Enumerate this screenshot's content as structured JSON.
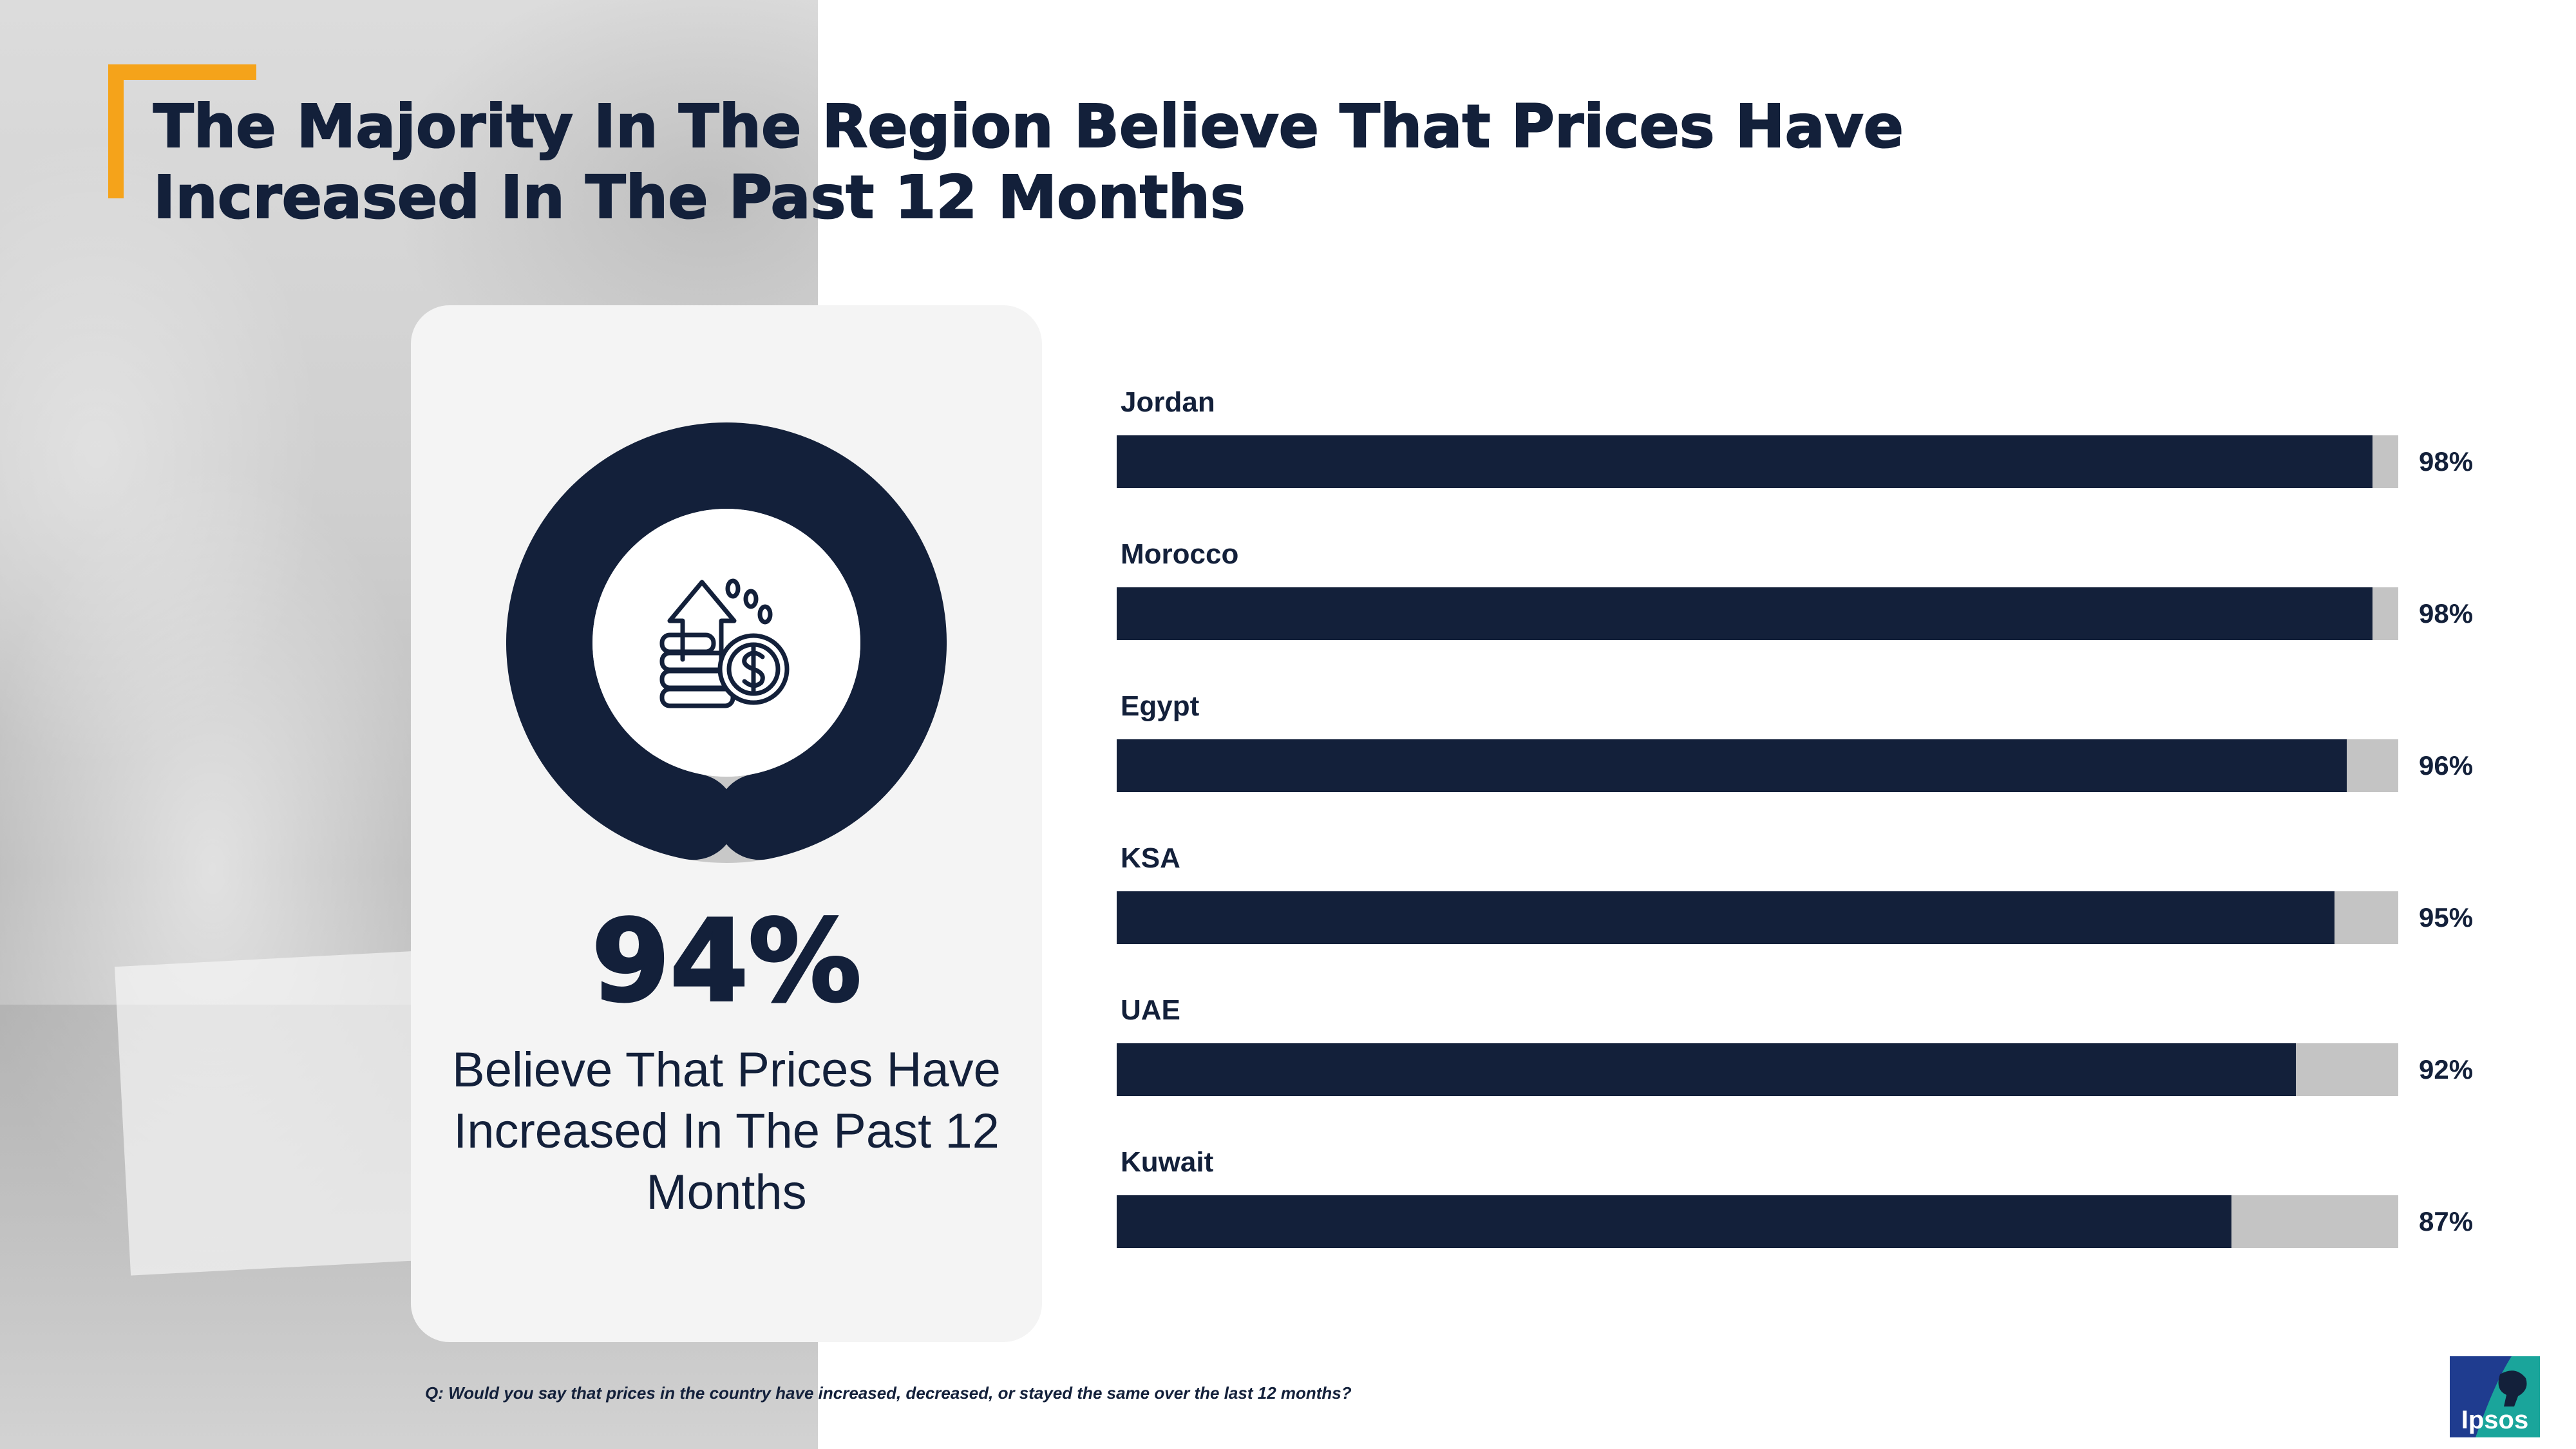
{
  "title": "The Majority In The Region Believe That Prices Have Increased In The Past 12 Months",
  "kpi": {
    "value": "94%",
    "fraction": 0.94,
    "caption": "Believe That Prices Have Increased In The Past 12 Months",
    "icon": "price-increase-icon"
  },
  "chart_data": {
    "type": "bar",
    "orientation": "horizontal",
    "categories": [
      "Jordan",
      "Morocco",
      "Egypt",
      "KSA",
      "UAE",
      "Kuwait"
    ],
    "values": [
      98,
      98,
      96,
      95,
      92,
      87
    ],
    "value_labels": [
      "98%",
      "98%",
      "96%",
      "95%",
      "92%",
      "87%"
    ],
    "xlim": [
      0,
      100
    ],
    "grid": false,
    "colors": {
      "bar": "#13203a",
      "track": "#c4c4c4"
    }
  },
  "footnote": "Q: Would you say that prices in the country have increased, decreased, or stayed the same over the last 12 months?",
  "logo": {
    "text": "Ipsos",
    "bg_color": "#1aa59b",
    "accent_color": "#1f3c8f"
  },
  "colors": {
    "navy": "#13203a",
    "accent": "#f5a31a"
  }
}
